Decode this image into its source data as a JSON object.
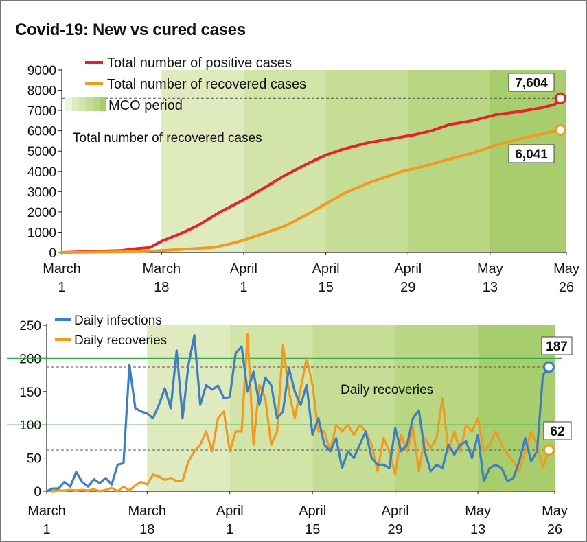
{
  "title": "Covid-19: New vs cured cases",
  "colors": {
    "positive": "#e8202a",
    "recovered": "#f19a21",
    "daily_infections": "#3d7fc1",
    "daily_recoveries": "#f19a21",
    "mco_shades": [
      "#eef4de",
      "#dfeabf",
      "#d2e4a8",
      "#c5dd94",
      "#b9d682",
      "#a8cd6d"
    ],
    "refline": "#39a845"
  },
  "x_ticks": [
    {
      "line1": "March",
      "line2": "1"
    },
    {
      "line1": "March",
      "line2": "18"
    },
    {
      "line1": "April",
      "line2": "1"
    },
    {
      "line1": "April",
      "line2": "15"
    },
    {
      "line1": "April",
      "line2": "29"
    },
    {
      "line1": "May",
      "line2": "13"
    },
    {
      "line1": "May",
      "line2": "26"
    }
  ],
  "chart_data": [
    {
      "type": "line",
      "ylim": [
        0,
        9000
      ],
      "y_ticks": [
        "0",
        "1000",
        "2000",
        "3000",
        "4000",
        "5000",
        "6000",
        "7000",
        "8000",
        "9000"
      ],
      "legend": {
        "positive": "Total number of positive cases",
        "recovered": "Total number of recovered cases",
        "mco": "MCO period"
      },
      "annotation": "Total number of recovered cases",
      "end_labels": {
        "positive": "7,604",
        "recovered": "6,041"
      },
      "series": [
        {
          "name": "Total number of positive cases",
          "points": [
            [
              0,
              0
            ],
            [
              5,
              50
            ],
            [
              10,
              90
            ],
            [
              13,
              200
            ],
            [
              15,
              240
            ],
            [
              17,
              550
            ],
            [
              20,
              900
            ],
            [
              23,
              1300
            ],
            [
              27,
              2000
            ],
            [
              31,
              2600
            ],
            [
              34,
              3100
            ],
            [
              38,
              3800
            ],
            [
              42,
              4400
            ],
            [
              45,
              4800
            ],
            [
              48,
              5100
            ],
            [
              52,
              5400
            ],
            [
              56,
              5600
            ],
            [
              60,
              5800
            ],
            [
              63,
              6000
            ],
            [
              66,
              6300
            ],
            [
              70,
              6500
            ],
            [
              74,
              6800
            ],
            [
              78,
              6950
            ],
            [
              82,
              7150
            ],
            [
              84,
              7300
            ],
            [
              85,
              7604
            ]
          ]
        },
        {
          "name": "Total number of recovered cases",
          "points": [
            [
              0,
              0
            ],
            [
              10,
              30
            ],
            [
              14,
              50
            ],
            [
              18,
              110
            ],
            [
              22,
              180
            ],
            [
              26,
              250
            ],
            [
              29,
              450
            ],
            [
              31,
              600
            ],
            [
              34,
              900
            ],
            [
              38,
              1300
            ],
            [
              42,
              1900
            ],
            [
              45,
              2400
            ],
            [
              48,
              2900
            ],
            [
              52,
              3400
            ],
            [
              55,
              3700
            ],
            [
              58,
              4000
            ],
            [
              61,
              4200
            ],
            [
              63,
              4350
            ],
            [
              66,
              4600
            ],
            [
              70,
              4900
            ],
            [
              74,
              5300
            ],
            [
              78,
              5600
            ],
            [
              82,
              5850
            ],
            [
              85,
              6041
            ]
          ]
        }
      ]
    },
    {
      "type": "line",
      "ylim": [
        0,
        250
      ],
      "y_ticks": [
        "0",
        "50",
        "100",
        "150",
        "200",
        "250"
      ],
      "legend": {
        "daily_infections": "Daily infections",
        "daily_recoveries": "Daily recoveries"
      },
      "annotation": "Daily recoveries",
      "end_labels": {
        "daily_infections": "187",
        "daily_recoveries": "62"
      },
      "reference_lines": [
        100,
        200
      ],
      "series": [
        {
          "name": "Daily infections",
          "values": [
            0,
            4,
            4,
            14,
            7,
            29,
            14,
            7,
            18,
            12,
            20,
            10,
            40,
            42,
            190,
            125,
            120,
            117,
            110,
            130,
            155,
            125,
            212,
            110,
            190,
            235,
            130,
            160,
            153,
            159,
            140,
            142,
            208,
            218,
            150,
            180,
            130,
            171,
            160,
            110,
            120,
            186,
            150,
            130,
            160,
            85,
            110,
            70,
            60,
            80,
            35,
            60,
            50,
            70,
            90,
            50,
            40,
            40,
            35,
            95,
            60,
            70,
            110,
            122,
            60,
            30,
            40,
            35,
            70,
            55,
            70,
            75,
            50,
            85,
            15,
            35,
            40,
            35,
            15,
            20,
            45,
            80,
            45,
            60,
            175,
            187
          ],
          "start_day": 0
        },
        {
          "name": "Daily recoveries",
          "values": [
            1,
            0,
            1,
            1,
            2,
            1,
            2,
            1,
            3,
            0,
            2,
            5,
            0,
            7,
            1,
            9,
            14,
            10,
            25,
            22,
            17,
            20,
            15,
            16,
            45,
            60,
            70,
            90,
            60,
            110,
            120,
            60,
            90,
            90,
            236,
            70,
            160,
            140,
            70,
            90,
            220,
            150,
            110,
            155,
            200,
            160,
            90,
            90,
            60,
            100,
            90,
            100,
            85,
            100,
            90,
            70,
            30,
            80,
            60,
            25,
            85,
            60,
            95,
            30,
            80,
            65,
            80,
            140,
            60,
            90,
            60,
            100,
            90,
            110,
            60,
            70,
            90,
            70,
            55,
            45,
            30,
            60,
            90,
            70,
            35,
            62
          ],
          "start_day": 0
        }
      ]
    }
  ]
}
